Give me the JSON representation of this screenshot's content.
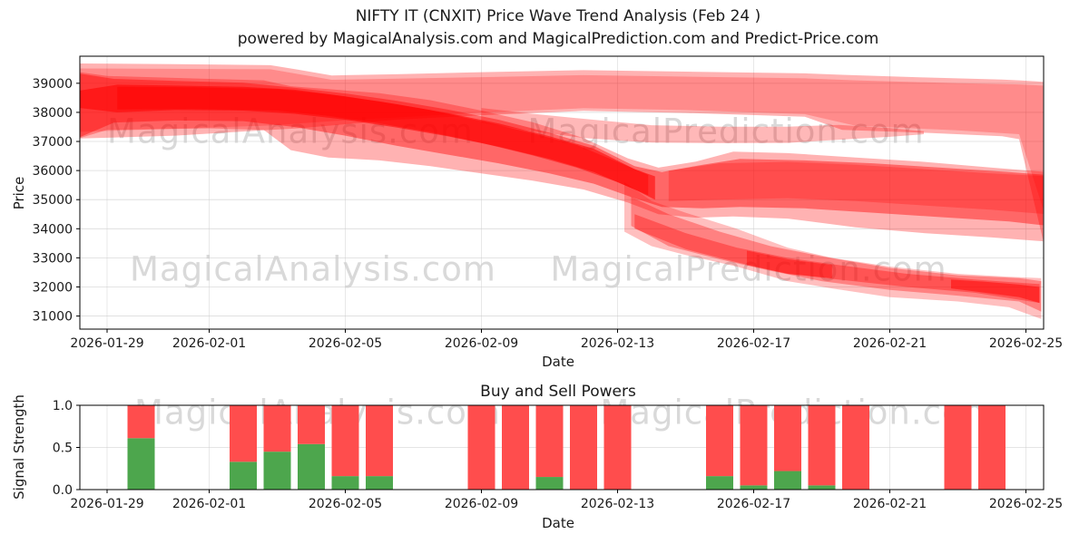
{
  "title": {
    "line1": "NIFTY IT (CNXIT) Price Wave Trend Analysis (Feb 24 )",
    "line2": "powered by MagicalAnalysis.com and MagicalPrediction.com and Predict-Price.com"
  },
  "watermarks": {
    "analysis": "MagicalAnalysis.com",
    "prediction": "MagicalPrediction.com"
  },
  "colors": {
    "band": "#ff0000",
    "buy": "#4da64d",
    "sell": "#ff4d4d",
    "grid": "#cfcfcf",
    "spine": "#000000",
    "text": "#1a1a1a"
  },
  "chart_data": [
    {
      "type": "area",
      "name": "price-wave",
      "xlabel": "Date",
      "ylabel": "Price",
      "x_unit": "days since 2026-01-29",
      "xlim": [
        -0.8,
        27.52
      ],
      "ylim": [
        30550,
        39930
      ],
      "grid": true,
      "yticks": [
        31000,
        32000,
        33000,
        34000,
        35000,
        36000,
        37000,
        38000,
        39000
      ],
      "ytick_labels": [
        "31000",
        "32000",
        "33000",
        "34000",
        "35000",
        "36000",
        "37000",
        "38000",
        "39000"
      ],
      "xticks": {
        "days": [
          0,
          3,
          7,
          11,
          15,
          19,
          23,
          27
        ],
        "labels": [
          "2026-01-29",
          "2026-02-01",
          "2026-02-05",
          "2026-02-09",
          "2026-02-13",
          "2026-02-17",
          "2026-02-21",
          "2026-02-25"
        ]
      },
      "bands": [
        {
          "name": "upper-envelope-outer",
          "alpha": 0.3,
          "points": [
            [
              -0.8,
              39680,
              37100
            ],
            [
              2,
              39660,
              37200
            ],
            [
              4.8,
              39620,
              37400
            ],
            [
              5.6,
              39470,
              37450
            ],
            [
              6.6,
              39270,
              37550
            ],
            [
              8.5,
              39310,
              37750
            ],
            [
              11,
              39380,
              37900
            ],
            [
              14,
              39450,
              38050
            ],
            [
              17,
              39400,
              37980
            ],
            [
              20.5,
              39340,
              37850
            ],
            [
              21.6,
              39290,
              37400
            ],
            [
              24,
              39200,
              37300
            ],
            [
              26.3,
              39130,
              37180
            ],
            [
              26.8,
              39100,
              37080
            ],
            [
              27.5,
              39050,
              33620
            ]
          ]
        },
        {
          "name": "upper-envelope-inner",
          "alpha": 0.22,
          "points": [
            [
              -0.8,
              39510,
              37330
            ],
            [
              4.8,
              39480,
              37550
            ],
            [
              6.6,
              39120,
              37700
            ],
            [
              11,
              39210,
              37990
            ],
            [
              14,
              39280,
              38140
            ],
            [
              17,
              39230,
              38080
            ],
            [
              20.5,
              39170,
              37940
            ],
            [
              22,
              39100,
              37540
            ],
            [
              25,
              39000,
              37380
            ],
            [
              26.8,
              38960,
              37250
            ],
            [
              27.5,
              38920,
              34700
            ]
          ]
        },
        {
          "name": "thin-mid-band",
          "alpha": 0.28,
          "points": [
            [
              11,
              38150,
              37650
            ],
            [
              12.5,
              37950,
              37350
            ],
            [
              14,
              37780,
              37120
            ],
            [
              16,
              37560,
              36960
            ],
            [
              18,
              37510,
              36940
            ],
            [
              20,
              37510,
              36950
            ],
            [
              21.5,
              37570,
              37060
            ],
            [
              23,
              37460,
              37160
            ],
            [
              24,
              37350,
              37250
            ]
          ]
        },
        {
          "name": "core-to-middle-outer",
          "alpha": 0.3,
          "points": [
            [
              -0.8,
              39380,
              37120
            ],
            [
              0,
              39250,
              37400
            ],
            [
              3,
              39150,
              37450
            ],
            [
              4.6,
              39100,
              37400
            ],
            [
              5.4,
              38900,
              36700
            ],
            [
              6.5,
              38800,
              36450
            ],
            [
              8,
              38660,
              36350
            ],
            [
              9.5,
              38420,
              36150
            ],
            [
              11,
              38060,
              35900
            ],
            [
              12.5,
              37660,
              35650
            ],
            [
              14,
              37120,
              35350
            ],
            [
              15.3,
              36420,
              34900
            ],
            [
              16.2,
              36100,
              34500
            ],
            [
              17.3,
              36310,
              34380
            ],
            [
              18.4,
              36650,
              34420
            ],
            [
              20,
              36600,
              34350
            ],
            [
              22,
              36450,
              34050
            ],
            [
              24,
              36300,
              33850
            ],
            [
              26,
              36100,
              33700
            ],
            [
              27.5,
              35960,
              33570
            ]
          ]
        },
        {
          "name": "core-to-middle-mid",
          "alpha": 0.42,
          "points": [
            [
              -0.8,
              39330,
              37150
            ],
            [
              0.2,
              39150,
              37650
            ],
            [
              2,
              39080,
              37720
            ],
            [
              4,
              39020,
              37700
            ],
            [
              5.5,
              38850,
              37500
            ],
            [
              7,
              38650,
              37200
            ],
            [
              8.5,
              38400,
              36850
            ],
            [
              10,
              38100,
              36550
            ],
            [
              11.5,
              37750,
              36250
            ],
            [
              13,
              37300,
              35900
            ],
            [
              14.3,
              36850,
              35550
            ],
            [
              15.5,
              36150,
              35050
            ],
            [
              16.3,
              35950,
              34750
            ],
            [
              17.5,
              36200,
              34700
            ],
            [
              18.6,
              36400,
              34750
            ],
            [
              20.5,
              36350,
              34700
            ],
            [
              22.5,
              36250,
              34550
            ],
            [
              24.5,
              36100,
              34400
            ],
            [
              26.5,
              35950,
              34250
            ],
            [
              27.5,
              35860,
              34120
            ]
          ]
        },
        {
          "name": "core-dark",
          "alpha": 0.55,
          "points": [
            [
              -0.8,
              38750,
              38150
            ],
            [
              0.3,
              38950,
              38000
            ],
            [
              2,
              38920,
              38080
            ],
            [
              4,
              38880,
              38060
            ],
            [
              5.5,
              38780,
              37950
            ],
            [
              7,
              38550,
              37750
            ],
            [
              8.5,
              38280,
              37480
            ],
            [
              10,
              37980,
              37180
            ],
            [
              11.5,
              37620,
              36820
            ],
            [
              13,
              37180,
              36400
            ],
            [
              14.3,
              36750,
              35950
            ],
            [
              15.5,
              36050,
              35350
            ],
            [
              16.1,
              35800,
              35000
            ]
          ]
        },
        {
          "name": "core-dark2",
          "alpha": 0.45,
          "points": [
            [
              0.3,
              38880,
              38100
            ],
            [
              2.5,
              38860,
              38120
            ],
            [
              5,
              38800,
              38060
            ],
            [
              6.5,
              38620,
              37880
            ],
            [
              8,
              38380,
              37620
            ],
            [
              9.5,
              38080,
              37320
            ],
            [
              11,
              37700,
              36950
            ],
            [
              12.5,
              37280,
              36520
            ],
            [
              13.8,
              36880,
              36100
            ],
            [
              15,
              36300,
              35600
            ],
            [
              15.9,
              35850,
              35150
            ]
          ]
        },
        {
          "name": "middle-band-dark",
          "alpha": 0.25,
          "points": [
            [
              16.5,
              36000,
              34950
            ],
            [
              18,
              36250,
              35000
            ],
            [
              20,
              36300,
              35050
            ],
            [
              22,
              36200,
              34950
            ],
            [
              24,
              36050,
              34800
            ],
            [
              26,
              35900,
              34650
            ],
            [
              27.5,
              35810,
              34510
            ]
          ]
        },
        {
          "name": "lower-fan-light",
          "alpha": 0.25,
          "points": [
            [
              15.2,
              35600,
              33900
            ],
            [
              16,
              34950,
              33400
            ],
            [
              17,
              34550,
              33100
            ],
            [
              18.5,
              34000,
              32700
            ],
            [
              20,
              33350,
              32200
            ],
            [
              21.3,
              33000,
              31950
            ],
            [
              23,
              32700,
              31650
            ],
            [
              25,
              32450,
              31500
            ],
            [
              26.5,
              32350,
              31300
            ],
            [
              27.45,
              32300,
              30900
            ]
          ]
        },
        {
          "name": "lower-fan-mid",
          "alpha": 0.32,
          "points": [
            [
              15.4,
              35100,
              34100
            ],
            [
              16.5,
              34500,
              33400
            ],
            [
              18,
              33900,
              32950
            ],
            [
              19.5,
              33400,
              32550
            ],
            [
              21,
              33050,
              32200
            ],
            [
              23,
              32650,
              31900
            ],
            [
              25,
              32400,
              31700
            ],
            [
              26.8,
              32300,
              31500
            ],
            [
              27.45,
              32200,
              31150
            ]
          ]
        },
        {
          "name": "lower-fan-core",
          "alpha": 0.35,
          "points": [
            [
              15.5,
              34500,
              34000
            ],
            [
              17,
              33850,
              33300
            ],
            [
              18.5,
              33350,
              32850
            ],
            [
              20,
              33000,
              32450
            ],
            [
              21.5,
              32750,
              32250
            ],
            [
              23.5,
              32450,
              32000
            ],
            [
              25.5,
              32250,
              31800
            ],
            [
              27.4,
              32100,
              31450
            ]
          ]
        },
        {
          "name": "lower-dark-streak-a",
          "alpha": 0.4,
          "points": [
            [
              18.8,
              33250,
              32750
            ],
            [
              20,
              32950,
              32450
            ],
            [
              21.3,
              32750,
              32300
            ]
          ]
        },
        {
          "name": "lower-dark-streak-b",
          "alpha": 0.5,
          "points": [
            [
              24.8,
              32250,
              31950
            ],
            [
              25.8,
              32180,
              31800
            ],
            [
              26.8,
              32080,
              31650
            ],
            [
              27.4,
              32000,
              31450
            ]
          ]
        }
      ]
    },
    {
      "type": "bar",
      "name": "buy-sell-powers",
      "title": "Buy and Sell Powers",
      "xlabel": "Date",
      "ylabel": "Signal Strength",
      "xlim": [
        -0.8,
        27.52
      ],
      "ylim": [
        0,
        1
      ],
      "grid": true,
      "yticks": [
        0.0,
        0.5,
        1.0
      ],
      "ytick_labels": [
        "0.0",
        "0.5",
        "1.0"
      ],
      "xticks": {
        "days": [
          0,
          3,
          7,
          11,
          15,
          19,
          23,
          27
        ],
        "labels": [
          "2026-01-29",
          "2026-02-01",
          "2026-02-05",
          "2026-02-09",
          "2026-02-13",
          "2026-02-17",
          "2026-02-21",
          "2026-02-25"
        ]
      },
      "bar_width_days": 0.8,
      "series": [
        {
          "name": "buy",
          "color": "#4da64d"
        },
        {
          "name": "sell",
          "color": "#ff4d4d"
        }
      ],
      "bars": [
        {
          "date": "2026-01-30",
          "day": 1,
          "buy": 0.61,
          "sell": 0.39
        },
        {
          "date": "2026-02-02",
          "day": 4,
          "buy": 0.33,
          "sell": 0.67
        },
        {
          "date": "2026-02-03",
          "day": 5,
          "buy": 0.45,
          "sell": 0.55
        },
        {
          "date": "2026-02-04",
          "day": 6,
          "buy": 0.54,
          "sell": 0.46
        },
        {
          "date": "2026-02-05",
          "day": 7,
          "buy": 0.16,
          "sell": 0.84
        },
        {
          "date": "2026-02-06",
          "day": 8,
          "buy": 0.16,
          "sell": 0.84
        },
        {
          "date": "2026-02-09",
          "day": 11,
          "buy": 0.0,
          "sell": 1.0
        },
        {
          "date": "2026-02-10",
          "day": 12,
          "buy": 0.0,
          "sell": 1.0
        },
        {
          "date": "2026-02-11",
          "day": 13,
          "buy": 0.15,
          "sell": 0.85
        },
        {
          "date": "2026-02-12",
          "day": 14,
          "buy": 0.0,
          "sell": 1.0
        },
        {
          "date": "2026-02-13",
          "day": 15,
          "buy": 0.0,
          "sell": 1.0
        },
        {
          "date": "2026-02-16",
          "day": 18,
          "buy": 0.16,
          "sell": 0.84
        },
        {
          "date": "2026-02-17",
          "day": 19,
          "buy": 0.05,
          "sell": 0.95
        },
        {
          "date": "2026-02-18",
          "day": 20,
          "buy": 0.22,
          "sell": 0.78
        },
        {
          "date": "2026-02-19",
          "day": 21,
          "buy": 0.05,
          "sell": 0.95
        },
        {
          "date": "2026-02-20",
          "day": 22,
          "buy": 0.0,
          "sell": 1.0
        },
        {
          "date": "2026-02-23",
          "day": 25,
          "buy": 0.0,
          "sell": 1.0
        },
        {
          "date": "2026-02-24",
          "day": 26,
          "buy": 0.0,
          "sell": 1.0
        }
      ]
    }
  ]
}
